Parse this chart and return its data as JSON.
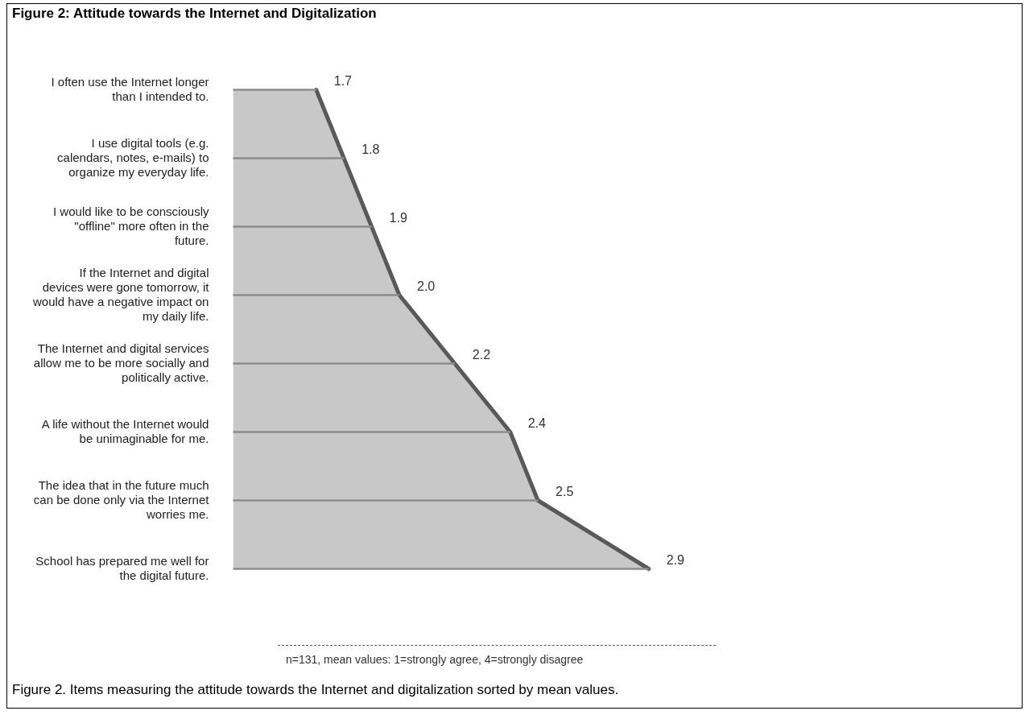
{
  "chart_data": {
    "type": "area",
    "orientation": "horizontal",
    "title": "Figure 2: Attitude towards the Internet and Digitalization",
    "categories": [
      "I often use the Internet longer than I intended to.",
      "I use digital tools (e.g. calendars, notes, e-mails) to organize my everyday life.",
      "I would like to be consciously \"offline\" more often in the future.",
      "If the Internet and digital devices were gone tomorrow, it would have a negative impact on my daily life.",
      "The Internet and digital services allow me to be more socially and politically active.",
      "A life without the Internet would be unimaginable for me.",
      "The idea that in the future much can be done only via the Internet worries me.",
      "School has prepared me well for the digital future."
    ],
    "series": [
      {
        "color": "#595959",
        "values": [
          1.7,
          1.8,
          1.9,
          2.0,
          2.2,
          2.4,
          2.5,
          2.9
        ],
        "value_labels": [
          "1.7",
          "1.8",
          "1.9",
          "2.0",
          "2.2",
          "2.4",
          "2.5",
          "2.9"
        ]
      },
      {
        "type": "bar",
        "color": "#8c8c8c",
        "values": [
          1.7,
          1.8,
          1.9,
          2.0,
          2.2,
          2.4,
          2.5,
          2.9
        ]
      }
    ],
    "legend": false,
    "tick_labels": "y",
    "annotations": [
      "n=131, mean values: 1=strongly agree, 4=strongly disagree",
      "Figure 2. Items measuring the attitude towards the Internet and digitalization sorted by mean values."
    ]
  }
}
